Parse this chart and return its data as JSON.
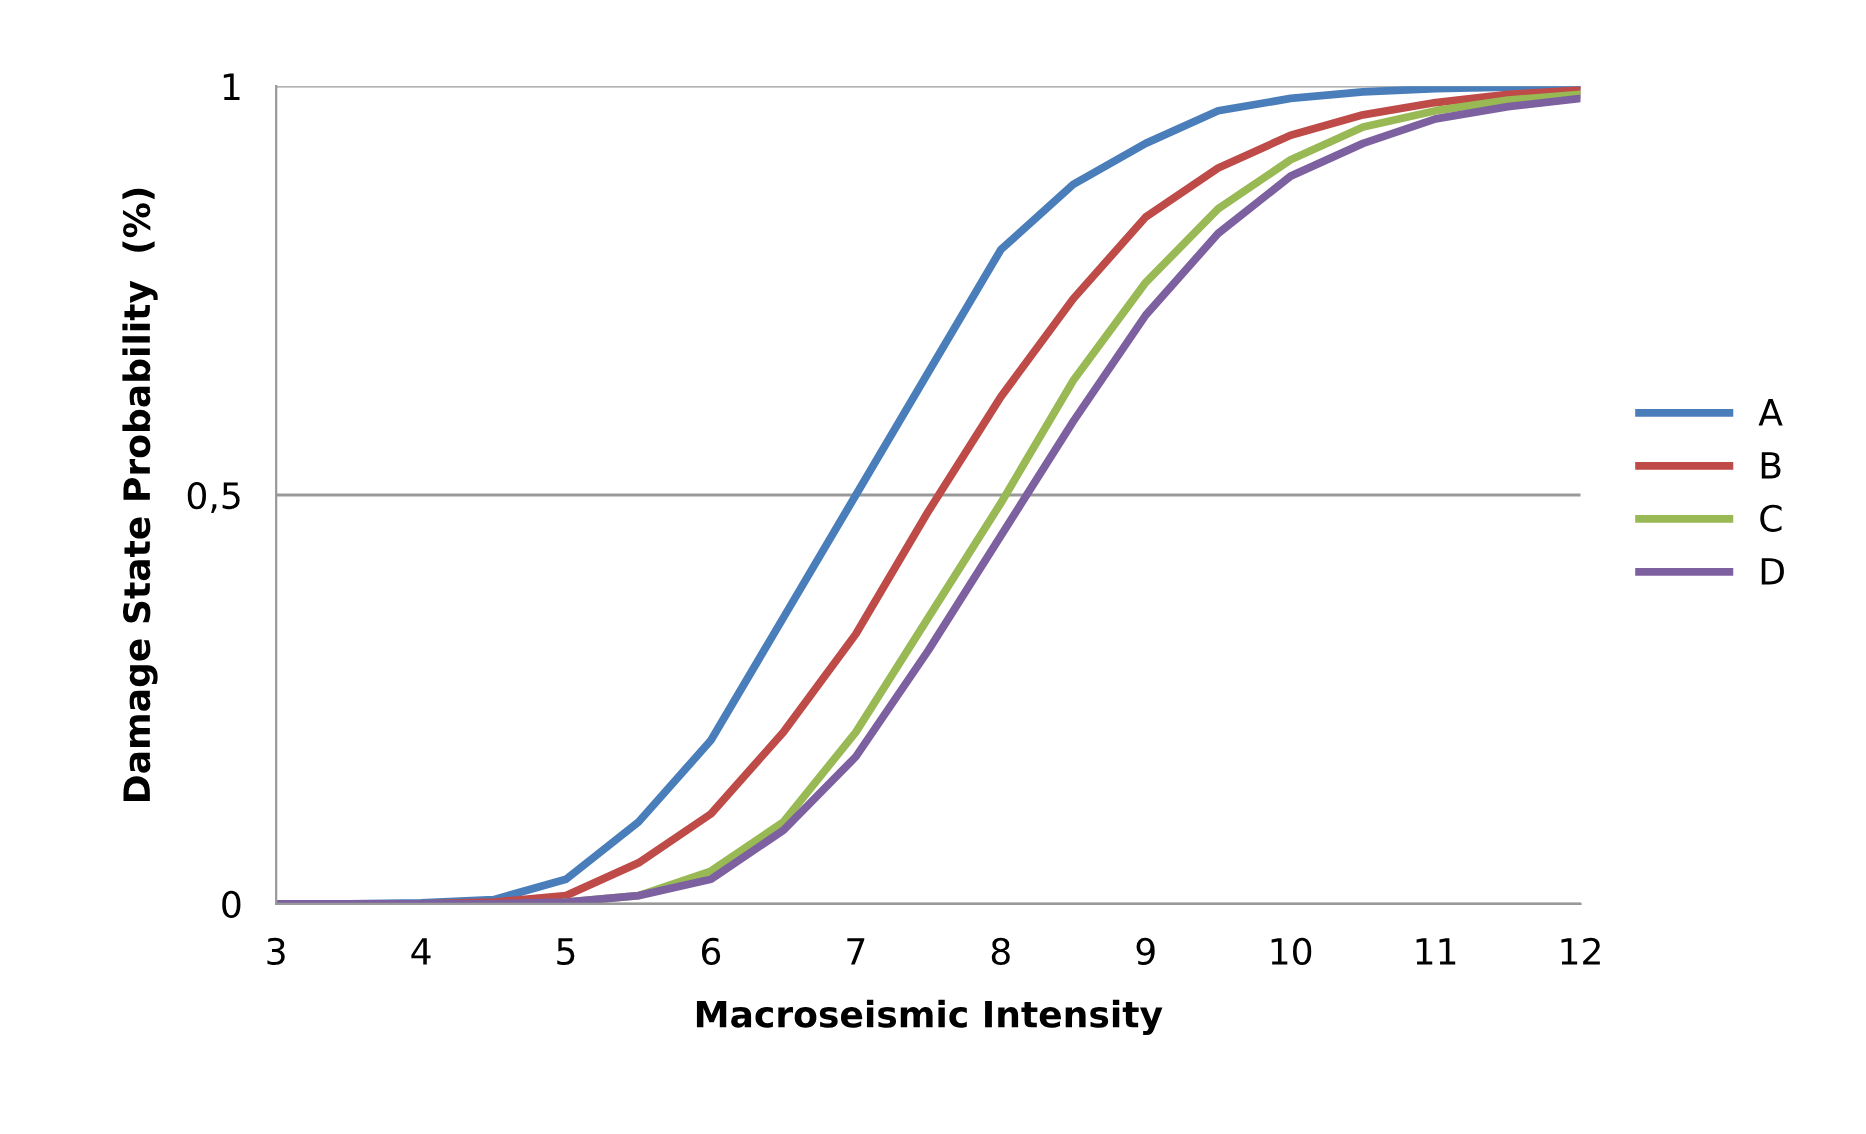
{
  "chart_data": {
    "type": "line",
    "xlabel": "Macroseismic Intensity",
    "ylabel": "Damage State Probability  (%)",
    "x": [
      3,
      3.5,
      4,
      4.5,
      5,
      5.5,
      6,
      6.5,
      7,
      7.5,
      8,
      8.5,
      9,
      9.5,
      10,
      10.5,
      11,
      11.5,
      12
    ],
    "series": [
      {
        "name": "A",
        "color": "#4a7ebb",
        "values": [
          0,
          0,
          0.001,
          0.005,
          0.03,
          0.1,
          0.2,
          0.35,
          0.5,
          0.65,
          0.8,
          0.88,
          0.93,
          0.97,
          0.985,
          0.993,
          0.997,
          0.999,
          1
        ]
      },
      {
        "name": "B",
        "color": "#be4b48",
        "values": [
          0,
          0,
          0,
          0.002,
          0.01,
          0.05,
          0.11,
          0.21,
          0.33,
          0.48,
          0.62,
          0.74,
          0.84,
          0.9,
          0.94,
          0.965,
          0.98,
          0.99,
          0.995
        ]
      },
      {
        "name": "C",
        "color": "#98b954",
        "values": [
          null,
          null,
          null,
          null,
          0.002,
          0.01,
          0.04,
          0.1,
          0.21,
          0.35,
          0.49,
          0.64,
          0.76,
          0.85,
          0.91,
          0.95,
          0.97,
          0.983,
          0.99
        ]
      },
      {
        "name": "D",
        "color": "#7d60a0",
        "values": [
          0,
          0,
          0,
          0,
          0.002,
          0.01,
          0.03,
          0.09,
          0.18,
          0.31,
          0.45,
          0.59,
          0.72,
          0.82,
          0.89,
          0.93,
          0.96,
          0.975,
          0.985
        ]
      }
    ],
    "xlim": [
      3,
      12
    ],
    "xticks": [
      3,
      4,
      5,
      6,
      7,
      8,
      9,
      10,
      11,
      12
    ],
    "ylim": [
      0,
      1
    ],
    "yticks": [
      0,
      {
        "value": 0.5,
        "label": "0,5"
      },
      1
    ],
    "grid": "y",
    "legend": "right",
    "marker": "none",
    "line_style": "solid"
  }
}
